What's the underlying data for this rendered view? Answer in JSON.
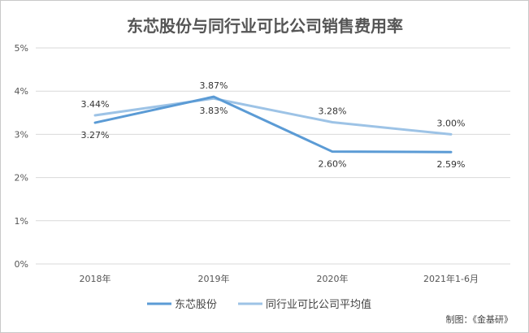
{
  "chart_data": {
    "type": "line",
    "title": "东芯股份与同行业可比公司销售费用率",
    "xlabel": "",
    "ylabel": "",
    "categories": [
      "2018年",
      "2019年",
      "2020年",
      "2021年1-6月"
    ],
    "y_ticks": [
      "0%",
      "1%",
      "2%",
      "3%",
      "4%",
      "5%"
    ],
    "ylim": [
      0,
      5
    ],
    "grid": true,
    "legend_position": "bottom",
    "series": [
      {
        "name": "东芯股份",
        "values": [
          3.27,
          3.87,
          2.6,
          2.59
        ],
        "labels": [
          "3.27%",
          "3.87%",
          "2.60%",
          "2.59%"
        ],
        "color": "#5b9bd5"
      },
      {
        "name": "同行业可比公司平均值",
        "values": [
          3.44,
          3.83,
          3.28,
          3.0
        ],
        "labels": [
          "3.44%",
          "3.83%",
          "3.28%",
          "3.00%"
        ],
        "color": "#9dc3e6"
      }
    ],
    "credit": "制图：《金基研》"
  }
}
